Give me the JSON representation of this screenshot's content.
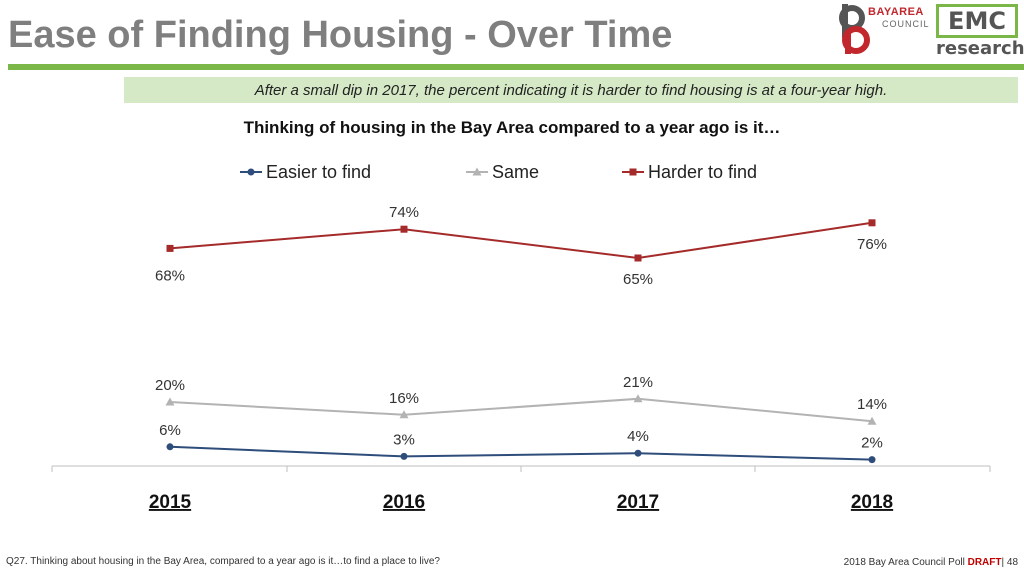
{
  "slide": {
    "title": "Ease of Finding Housing - Over Time",
    "subtitle": "After a small dip in 2017, the percent indicating it is harder to find housing is at a four-year high.",
    "logo_bay_area_line1": "BAYAREA",
    "logo_bay_area_line2": "COUNCIL",
    "logo_emc_main": "EMC",
    "logo_emc_sub": "research",
    "footer_question": "Q27. Thinking about housing in the Bay Area, compared to a year ago is it…to find a place to live?",
    "footer_source": "2018 Bay Area Council Poll ",
    "footer_draft": "DRAFT",
    "footer_page": "| 48"
  },
  "colors": {
    "title_gray": "#7f7f7f",
    "accent_green": "#7ab648",
    "subtitle_bg": "#d6e9c6",
    "easier": "#2e4d7b",
    "same": "#b3b3b3",
    "harder": "#a52a2a"
  },
  "chart_data": {
    "type": "line",
    "title": "Thinking of housing in the Bay Area compared to a year ago is it…",
    "categories": [
      "2015",
      "2016",
      "2017",
      "2018"
    ],
    "ylim": [
      0,
      80
    ],
    "grid": false,
    "legend_position": "top",
    "series": [
      {
        "name": "Easier to find",
        "values": [
          6,
          3,
          4,
          2
        ],
        "labels": [
          "6%",
          "3%",
          "4%",
          "2%"
        ],
        "color": "#2e4d7b",
        "marker": "circle"
      },
      {
        "name": "Same",
        "values": [
          20,
          16,
          21,
          14
        ],
        "labels": [
          "20%",
          "16%",
          "21%",
          "14%"
        ],
        "color": "#b3b3b3",
        "marker": "triangle"
      },
      {
        "name": "Harder to find",
        "values": [
          68,
          74,
          65,
          76
        ],
        "labels": [
          "68%",
          "74%",
          "65%",
          "76%"
        ],
        "color": "#a52a2a",
        "marker": "square"
      }
    ]
  }
}
